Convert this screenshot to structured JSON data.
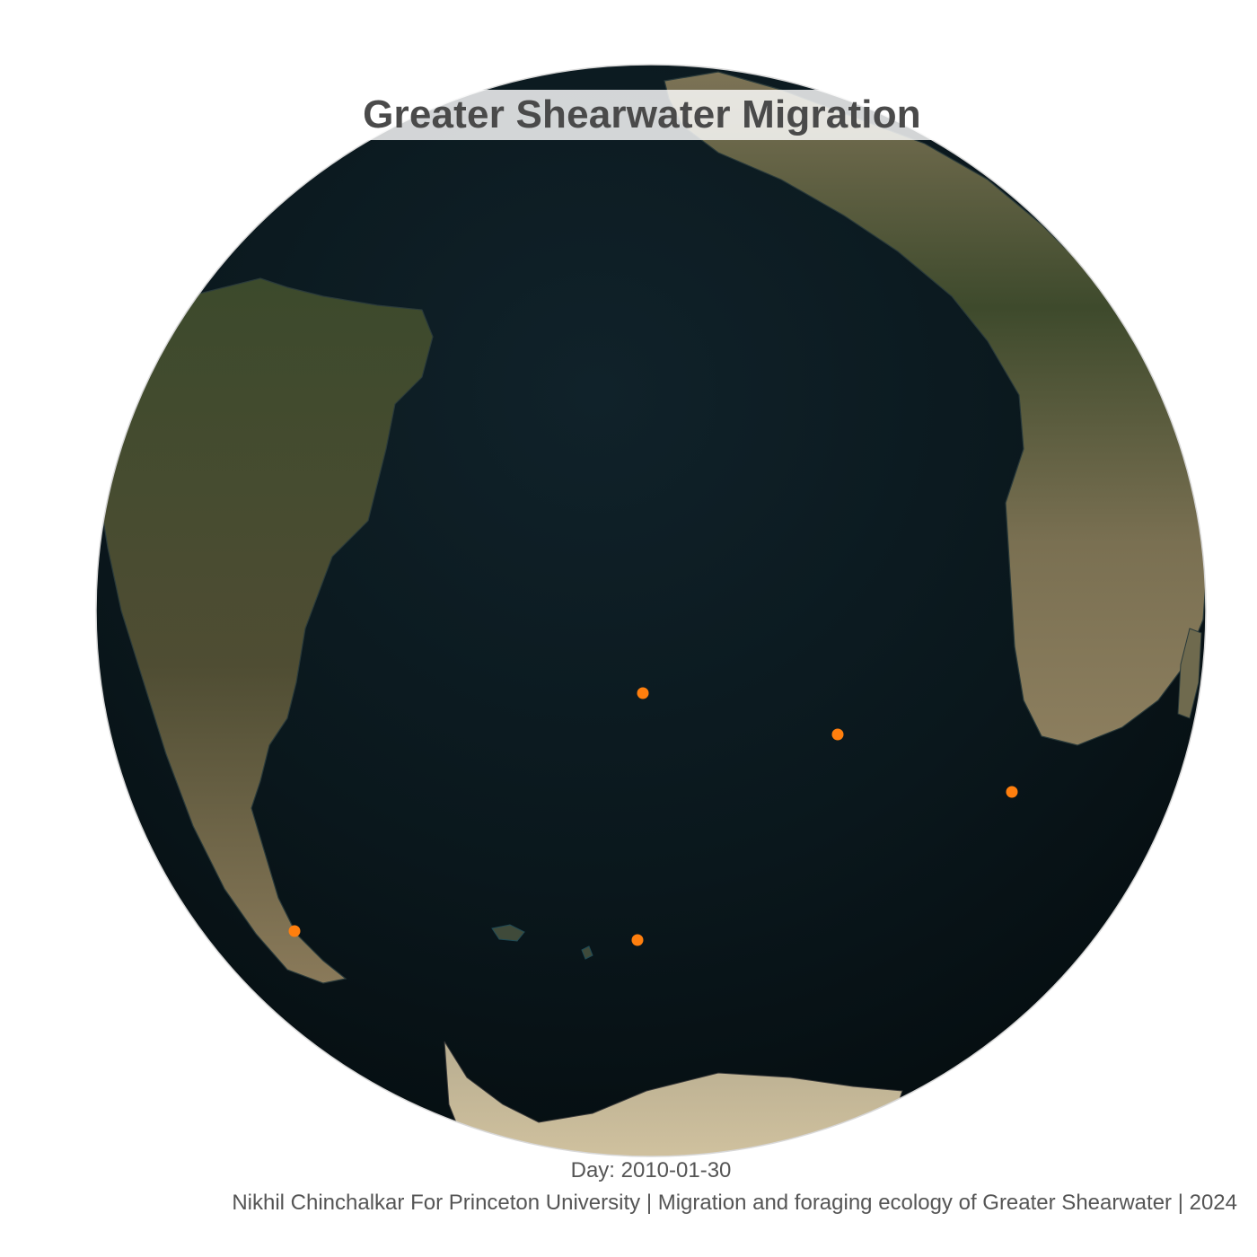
{
  "map": {
    "title": "Greater Shearwater Migration",
    "day_label": "Day: 2010-01-30",
    "credit": "Nikhil Chinchalkar For Princeton University | Migration and foraging ecology of Greater Shearwater | 2024",
    "projection": "orthographic",
    "ocean_color": "#0a171c",
    "land_color": "#4a4a30",
    "marker_color": "#ff7f0e",
    "visible_regions": [
      "South America",
      "Africa",
      "Antarctica",
      "South Atlantic Ocean"
    ],
    "birds": [
      {
        "id": 1,
        "location": "South Atlantic (central)"
      },
      {
        "id": 2,
        "location": "South Atlantic (east-central)"
      },
      {
        "id": 3,
        "location": "South Atlantic (off southern Africa)"
      },
      {
        "id": 4,
        "location": "Tierra del Fuego coast"
      },
      {
        "id": 5,
        "location": "South Atlantic (south-central)"
      }
    ]
  }
}
